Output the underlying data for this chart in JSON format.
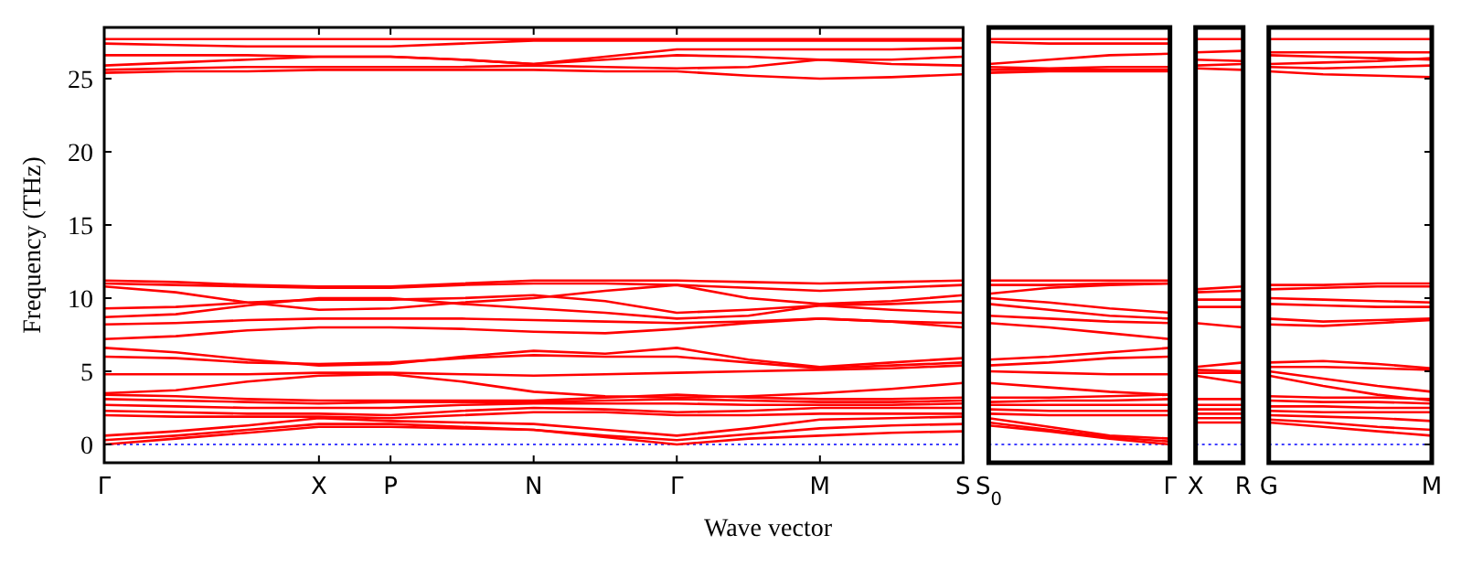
{
  "chart_data": [
    {
      "type": "line",
      "xlabel": "Wave vector",
      "ylabel": "Frequency (THz)",
      "ylim": [
        -1.25,
        28.5
      ],
      "yticks": [
        0,
        5,
        10,
        15,
        20,
        25
      ],
      "categories": [
        "Γ",
        null,
        null,
        "X",
        "P",
        null,
        "N",
        null,
        "Γ",
        null,
        "M",
        null,
        "S"
      ],
      "ref_lines": [
        {
          "axis": "y",
          "value": 0,
          "color": "#0000ff",
          "line_style": "dotted"
        }
      ],
      "series": [
        {
          "color": "#ff0000",
          "values": [
            27.7,
            27.7,
            27.7,
            27.7,
            27.7,
            27.7,
            27.7,
            27.7,
            27.7,
            27.7,
            27.7,
            27.7,
            27.7
          ]
        },
        {
          "color": "#ff0000",
          "values": [
            27.4,
            27.3,
            27.2,
            27.2,
            27.2,
            27.4,
            27.6,
            27.6,
            27.6,
            27.6,
            27.6,
            27.6,
            27.6
          ]
        },
        {
          "color": "#ff0000",
          "values": [
            26.6,
            26.6,
            26.6,
            26.5,
            26.5,
            26.3,
            26.0,
            26.5,
            27.0,
            27.0,
            27.0,
            27.0,
            27.1
          ]
        },
        {
          "color": "#ff0000",
          "values": [
            25.9,
            26.1,
            26.3,
            26.5,
            26.5,
            26.3,
            26.0,
            26.3,
            26.6,
            26.5,
            26.3,
            26.3,
            26.5
          ]
        },
        {
          "color": "#ff0000",
          "values": [
            25.6,
            25.7,
            25.8,
            25.8,
            25.8,
            25.8,
            25.9,
            25.8,
            25.7,
            25.8,
            26.3,
            26.0,
            25.9
          ]
        },
        {
          "color": "#ff0000",
          "values": [
            25.4,
            25.5,
            25.5,
            25.6,
            25.6,
            25.6,
            25.6,
            25.5,
            25.5,
            25.2,
            25.0,
            25.1,
            25.3
          ]
        },
        {
          "color": "#ff0000",
          "values": [
            11.2,
            11.1,
            10.9,
            10.8,
            10.8,
            11.0,
            11.2,
            11.2,
            11.2,
            11.1,
            11.0,
            11.1,
            11.2
          ]
        },
        {
          "color": "#ff0000",
          "values": [
            11.0,
            10.9,
            10.8,
            10.7,
            10.7,
            10.9,
            11.0,
            11.0,
            10.9,
            10.7,
            10.5,
            10.7,
            10.9
          ]
        },
        {
          "color": "#ff0000",
          "values": [
            10.8,
            10.4,
            9.7,
            9.2,
            9.3,
            9.7,
            10.0,
            10.5,
            10.9,
            10.0,
            9.6,
            9.8,
            10.2
          ]
        },
        {
          "color": "#ff0000",
          "values": [
            9.3,
            9.4,
            9.7,
            9.9,
            9.9,
            10.0,
            10.2,
            9.8,
            9.0,
            9.2,
            9.5,
            9.6,
            9.8
          ]
        },
        {
          "color": "#ff0000",
          "values": [
            8.7,
            8.9,
            9.5,
            10.0,
            10.0,
            9.6,
            9.3,
            9.0,
            8.6,
            8.8,
            9.5,
            9.2,
            9.0
          ]
        },
        {
          "color": "#ff0000",
          "values": [
            8.2,
            8.3,
            8.5,
            8.6,
            8.6,
            8.6,
            8.5,
            8.4,
            8.3,
            8.4,
            8.6,
            8.4,
            8.3
          ]
        },
        {
          "color": "#ff0000",
          "values": [
            7.2,
            7.4,
            7.8,
            8.0,
            8.0,
            7.9,
            7.7,
            7.6,
            7.9,
            8.3,
            8.6,
            8.4,
            8.0
          ]
        },
        {
          "color": "#ff0000",
          "values": [
            6.6,
            6.3,
            5.8,
            5.4,
            5.5,
            6.0,
            6.4,
            6.2,
            6.6,
            5.8,
            5.3,
            5.6,
            5.9
          ]
        },
        {
          "color": "#ff0000",
          "values": [
            6.0,
            5.9,
            5.6,
            5.5,
            5.6,
            5.9,
            6.1,
            6.0,
            6.0,
            5.6,
            5.2,
            5.4,
            5.6
          ]
        },
        {
          "color": "#ff0000",
          "values": [
            4.8,
            4.8,
            4.8,
            4.9,
            4.9,
            4.8,
            4.7,
            4.8,
            4.9,
            5.0,
            5.1,
            5.2,
            5.4
          ]
        },
        {
          "color": "#ff0000",
          "values": [
            3.5,
            3.7,
            4.3,
            4.7,
            4.8,
            4.3,
            3.6,
            3.3,
            3.2,
            3.3,
            3.5,
            3.8,
            4.2
          ]
        },
        {
          "color": "#ff0000",
          "values": [
            3.4,
            3.3,
            3.1,
            3.0,
            3.0,
            3.0,
            3.0,
            3.2,
            3.4,
            3.2,
            3.1,
            3.1,
            3.2
          ]
        },
        {
          "color": "#ff0000",
          "values": [
            3.1,
            3.0,
            2.9,
            2.8,
            2.9,
            2.9,
            2.9,
            3.0,
            3.1,
            3.0,
            2.9,
            2.9,
            3.0
          ]
        },
        {
          "color": "#ff0000",
          "values": [
            2.7,
            2.6,
            2.5,
            2.5,
            2.5,
            2.7,
            2.8,
            2.8,
            2.8,
            2.7,
            2.7,
            2.7,
            2.8
          ]
        },
        {
          "color": "#ff0000",
          "values": [
            2.3,
            2.2,
            2.1,
            2.1,
            2.0,
            2.3,
            2.5,
            2.4,
            2.2,
            2.3,
            2.5,
            2.5,
            2.5
          ]
        },
        {
          "color": "#ff0000",
          "values": [
            2.0,
            1.9,
            1.9,
            1.9,
            1.8,
            2.0,
            2.2,
            2.2,
            2.0,
            2.0,
            2.1,
            2.1,
            2.1
          ]
        },
        {
          "color": "#ff0000",
          "values": [
            0.6,
            0.9,
            1.3,
            1.8,
            1.6,
            1.5,
            1.4,
            1.0,
            0.6,
            1.1,
            1.7,
            1.8,
            1.9
          ]
        },
        {
          "color": "#ff0000",
          "values": [
            0.3,
            0.6,
            1.0,
            1.4,
            1.4,
            1.2,
            1.0,
            0.6,
            0.3,
            0.7,
            1.1,
            1.3,
            1.4
          ]
        },
        {
          "color": "#ff0000",
          "values": [
            0,
            0.4,
            0.8,
            1.2,
            1.2,
            1.1,
            1.0,
            0.5,
            0,
            0.4,
            0.6,
            0.8,
            0.9
          ]
        }
      ]
    },
    {
      "type": "line",
      "tick_labels": "x",
      "ylim": [
        -1.25,
        28.5
      ],
      "yticks": [
        0,
        5,
        10,
        15,
        20,
        25
      ],
      "categories": [
        "S$_{0}$",
        null,
        null,
        "Γ"
      ],
      "ref_lines": [
        {
          "axis": "y",
          "value": 0,
          "color": "#0000ff",
          "line_style": "dotted"
        }
      ],
      "series": [
        {
          "color": "#ff0000",
          "values": [
            27.7,
            27.7,
            27.7,
            27.7
          ]
        },
        {
          "color": "#ff0000",
          "values": [
            27.5,
            27.4,
            27.4,
            27.4
          ]
        },
        {
          "color": "#ff0000",
          "values": [
            26.0,
            26.3,
            26.6,
            26.7
          ]
        },
        {
          "color": "#ff0000",
          "values": [
            25.8,
            25.7,
            25.8,
            25.8
          ]
        },
        {
          "color": "#ff0000",
          "values": [
            25.6,
            25.6,
            25.6,
            25.6
          ]
        },
        {
          "color": "#ff0000",
          "values": [
            25.4,
            25.5,
            25.5,
            25.5
          ]
        },
        {
          "color": "#ff0000",
          "values": [
            11.2,
            11.2,
            11.2,
            11.2
          ]
        },
        {
          "color": "#ff0000",
          "values": [
            10.9,
            10.9,
            11.0,
            11.0
          ]
        },
        {
          "color": "#ff0000",
          "values": [
            10.3,
            10.7,
            10.9,
            11.0
          ]
        },
        {
          "color": "#ff0000",
          "values": [
            10.0,
            9.7,
            9.3,
            9.0
          ]
        },
        {
          "color": "#ff0000",
          "values": [
            9.6,
            9.2,
            8.8,
            8.6
          ]
        },
        {
          "color": "#ff0000",
          "values": [
            8.8,
            8.6,
            8.4,
            8.3
          ]
        },
        {
          "color": "#ff0000",
          "values": [
            8.3,
            8.0,
            7.6,
            7.2
          ]
        },
        {
          "color": "#ff0000",
          "values": [
            5.8,
            6.0,
            6.3,
            6.6
          ]
        },
        {
          "color": "#ff0000",
          "values": [
            5.4,
            5.6,
            5.9,
            6.0
          ]
        },
        {
          "color": "#ff0000",
          "values": [
            5.0,
            4.9,
            4.8,
            4.8
          ]
        },
        {
          "color": "#ff0000",
          "values": [
            4.2,
            3.9,
            3.6,
            3.4
          ]
        },
        {
          "color": "#ff0000",
          "values": [
            3.2,
            3.2,
            3.3,
            3.4
          ]
        },
        {
          "color": "#ff0000",
          "values": [
            2.9,
            3.0,
            3.0,
            3.1
          ]
        },
        {
          "color": "#ff0000",
          "values": [
            2.7,
            2.7,
            2.7,
            2.7
          ]
        },
        {
          "color": "#ff0000",
          "values": [
            2.4,
            2.3,
            2.3,
            2.3
          ]
        },
        {
          "color": "#ff0000",
          "values": [
            2.1,
            2.0,
            2.0,
            2.0
          ]
        },
        {
          "color": "#ff0000",
          "values": [
            1.8,
            1.2,
            0.6,
            0.4
          ]
        },
        {
          "color": "#ff0000",
          "values": [
            1.5,
            1.0,
            0.5,
            0.2
          ]
        },
        {
          "color": "#ff0000",
          "values": [
            1.3,
            0.9,
            0.4,
            0
          ]
        }
      ]
    },
    {
      "type": "line",
      "tick_labels": "x",
      "ylim": [
        -1.25,
        28.5
      ],
      "yticks": [
        0,
        5,
        10,
        15,
        20,
        25
      ],
      "categories": [
        "X",
        "R"
      ],
      "ref_lines": [
        {
          "axis": "y",
          "value": 0,
          "color": "#0000ff",
          "line_style": "dotted"
        }
      ],
      "series": [
        {
          "color": "#ff0000",
          "values": [
            27.7,
            27.7
          ]
        },
        {
          "color": "#ff0000",
          "values": [
            26.8,
            26.9
          ]
        },
        {
          "color": "#ff0000",
          "values": [
            26.3,
            26.2
          ]
        },
        {
          "color": "#ff0000",
          "values": [
            25.9,
            26.0
          ]
        },
        {
          "color": "#ff0000",
          "values": [
            25.7,
            25.6
          ]
        },
        {
          "color": "#ff0000",
          "values": [
            10.6,
            10.8
          ]
        },
        {
          "color": "#ff0000",
          "values": [
            10.4,
            10.5
          ]
        },
        {
          "color": "#ff0000",
          "values": [
            9.9,
            9.9
          ]
        },
        {
          "color": "#ff0000",
          "values": [
            9.4,
            9.4
          ]
        },
        {
          "color": "#ff0000",
          "values": [
            8.3,
            8.0
          ]
        },
        {
          "color": "#ff0000",
          "values": [
            5.3,
            5.6
          ]
        },
        {
          "color": "#ff0000",
          "values": [
            5.1,
            5.0
          ]
        },
        {
          "color": "#ff0000",
          "values": [
            4.9,
            4.9
          ]
        },
        {
          "color": "#ff0000",
          "values": [
            4.7,
            4.2
          ]
        },
        {
          "color": "#ff0000",
          "values": [
            3.1,
            3.1
          ]
        },
        {
          "color": "#ff0000",
          "values": [
            2.7,
            2.7
          ]
        },
        {
          "color": "#ff0000",
          "values": [
            2.4,
            2.4
          ]
        },
        {
          "color": "#ff0000",
          "values": [
            2.1,
            2.1
          ]
        },
        {
          "color": "#ff0000",
          "values": [
            1.8,
            1.8
          ]
        },
        {
          "color": "#ff0000",
          "values": [
            1.5,
            1.5
          ]
        }
      ]
    },
    {
      "type": "line",
      "tick_labels": "x",
      "ylim": [
        -1.25,
        28.5
      ],
      "yticks": [
        0,
        5,
        10,
        15,
        20,
        25
      ],
      "categories": [
        "G",
        null,
        null,
        "M"
      ],
      "ref_lines": [
        {
          "axis": "y",
          "value": 0,
          "color": "#0000ff",
          "line_style": "dotted"
        }
      ],
      "series": [
        {
          "color": "#ff0000",
          "values": [
            27.7,
            27.7,
            27.7,
            27.7
          ]
        },
        {
          "color": "#ff0000",
          "values": [
            26.8,
            26.8,
            26.8,
            26.8
          ]
        },
        {
          "color": "#ff0000",
          "values": [
            26.6,
            26.5,
            26.4,
            26.3
          ]
        },
        {
          "color": "#ff0000",
          "values": [
            26.0,
            26.1,
            26.2,
            26.4
          ]
        },
        {
          "color": "#ff0000",
          "values": [
            25.8,
            25.7,
            25.8,
            25.9
          ]
        },
        {
          "color": "#ff0000",
          "values": [
            25.5,
            25.3,
            25.2,
            25.1
          ]
        },
        {
          "color": "#ff0000",
          "values": [
            10.9,
            10.9,
            11.0,
            11.0
          ]
        },
        {
          "color": "#ff0000",
          "values": [
            10.6,
            10.7,
            10.8,
            10.8
          ]
        },
        {
          "color": "#ff0000",
          "values": [
            10.0,
            9.9,
            9.8,
            9.7
          ]
        },
        {
          "color": "#ff0000",
          "values": [
            9.6,
            9.5,
            9.4,
            9.4
          ]
        },
        {
          "color": "#ff0000",
          "values": [
            8.6,
            8.4,
            8.5,
            8.6
          ]
        },
        {
          "color": "#ff0000",
          "values": [
            8.2,
            8.1,
            8.3,
            8.5
          ]
        },
        {
          "color": "#ff0000",
          "values": [
            5.6,
            5.7,
            5.5,
            5.2
          ]
        },
        {
          "color": "#ff0000",
          "values": [
            5.3,
            5.3,
            5.2,
            5.1
          ]
        },
        {
          "color": "#ff0000",
          "values": [
            5.0,
            4.5,
            4.0,
            3.6
          ]
        },
        {
          "color": "#ff0000",
          "values": [
            4.7,
            4.0,
            3.4,
            3.0
          ]
        },
        {
          "color": "#ff0000",
          "values": [
            3.3,
            3.2,
            3.2,
            3.1
          ]
        },
        {
          "color": "#ff0000",
          "values": [
            3.0,
            2.9,
            2.9,
            2.8
          ]
        },
        {
          "color": "#ff0000",
          "values": [
            2.6,
            2.6,
            2.5,
            2.5
          ]
        },
        {
          "color": "#ff0000",
          "values": [
            2.3,
            2.2,
            2.2,
            2.2
          ]
        },
        {
          "color": "#ff0000",
          "values": [
            2.0,
            1.9,
            1.8,
            1.6
          ]
        },
        {
          "color": "#ff0000",
          "values": [
            1.7,
            1.5,
            1.2,
            1.0
          ]
        },
        {
          "color": "#ff0000",
          "values": [
            1.5,
            1.2,
            0.9,
            0.6
          ]
        }
      ]
    }
  ]
}
